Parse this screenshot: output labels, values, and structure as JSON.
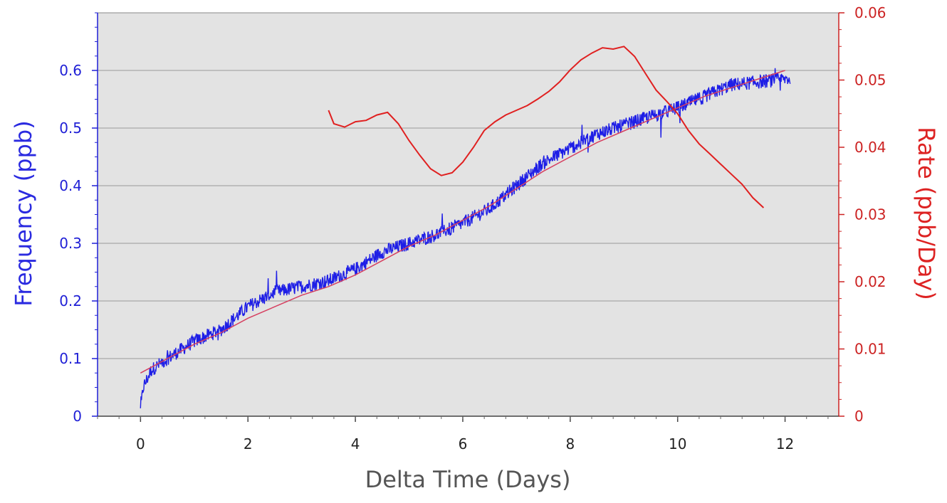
{
  "chart_data": {
    "type": "line",
    "title": "",
    "xlabel": "Delta Time (Days)",
    "ylabel_left": "Frequency (ppb)",
    "ylabel_right": "Rate (ppb/Day)",
    "x_ticks": [
      "0",
      "2",
      "4",
      "6",
      "8",
      "10",
      "12"
    ],
    "y_left_ticks": [
      "0",
      "0.1",
      "0.2",
      "0.3",
      "0.4",
      "0.5",
      "0.6"
    ],
    "y_right_ticks": [
      "0",
      "0.01",
      "0.02",
      "0.03",
      "0.04",
      "0.05",
      "0.06"
    ],
    "xlim": [
      -0.8,
      13.0
    ],
    "ylim_left": [
      0,
      0.7
    ],
    "ylim_right": [
      0,
      0.06
    ],
    "grid": true,
    "colors": {
      "plot_bg": "#e3e3e3",
      "frequency": "#1e1ee6",
      "fit": "#d64060",
      "rate": "#e02020",
      "left_axis": "#1f1fd6",
      "right_axis": "#cc2222",
      "grid": "#9a9a9a"
    },
    "series": [
      {
        "axis": "left",
        "style": "noisy",
        "x": [
          0.0,
          0.05,
          0.2,
          0.5,
          1.0,
          1.5,
          2.0,
          2.5,
          3.0,
          3.5,
          4.0,
          4.5,
          5.0,
          5.5,
          6.0,
          6.5,
          7.0,
          7.5,
          8.0,
          8.5,
          9.0,
          9.5,
          10.0,
          10.5,
          11.0,
          11.5,
          12.0,
          12.1
        ],
        "y": [
          0.01,
          0.05,
          0.08,
          0.1,
          0.13,
          0.15,
          0.19,
          0.215,
          0.225,
          0.235,
          0.255,
          0.285,
          0.3,
          0.315,
          0.335,
          0.36,
          0.4,
          0.44,
          0.465,
          0.49,
          0.505,
          0.52,
          0.535,
          0.555,
          0.575,
          0.58,
          0.585,
          0.585
        ]
      },
      {
        "axis": "left",
        "style": "fit",
        "x": [
          0.0,
          0.5,
          1.0,
          1.5,
          2.0,
          2.5,
          3.0,
          3.5,
          4.0,
          4.5,
          5.0,
          5.5,
          6.0,
          6.5,
          7.0,
          7.5,
          8.0,
          8.5,
          9.0,
          9.5,
          10.0,
          10.5,
          11.0,
          11.5,
          12.0
        ],
        "y": [
          0.075,
          0.1,
          0.125,
          0.145,
          0.17,
          0.19,
          0.21,
          0.225,
          0.245,
          0.27,
          0.295,
          0.315,
          0.34,
          0.365,
          0.395,
          0.425,
          0.45,
          0.475,
          0.495,
          0.515,
          0.535,
          0.555,
          0.57,
          0.585,
          0.6
        ]
      },
      {
        "axis": "right",
        "style": "rate",
        "x": [
          3.5,
          3.6,
          3.8,
          4.0,
          4.2,
          4.4,
          4.6,
          4.8,
          5.0,
          5.2,
          5.4,
          5.6,
          5.8,
          6.0,
          6.2,
          6.4,
          6.6,
          6.8,
          7.0,
          7.2,
          7.4,
          7.6,
          7.8,
          8.0,
          8.2,
          8.4,
          8.6,
          8.8,
          9.0,
          9.2,
          9.4,
          9.6,
          9.8,
          10.0,
          10.2,
          10.4,
          10.6,
          10.8,
          11.0,
          11.2,
          11.4,
          11.6
        ],
        "y": [
          0.0455,
          0.0435,
          0.043,
          0.0438,
          0.044,
          0.0448,
          0.0452,
          0.0435,
          0.041,
          0.0388,
          0.0368,
          0.0358,
          0.0362,
          0.0378,
          0.04,
          0.0425,
          0.0438,
          0.0448,
          0.0455,
          0.0462,
          0.0472,
          0.0483,
          0.0497,
          0.0515,
          0.053,
          0.054,
          0.0548,
          0.0546,
          0.055,
          0.0535,
          0.051,
          0.0485,
          0.0468,
          0.045,
          0.0425,
          0.0405,
          0.039,
          0.0375,
          0.036,
          0.0345,
          0.0325,
          0.031
        ]
      }
    ]
  }
}
